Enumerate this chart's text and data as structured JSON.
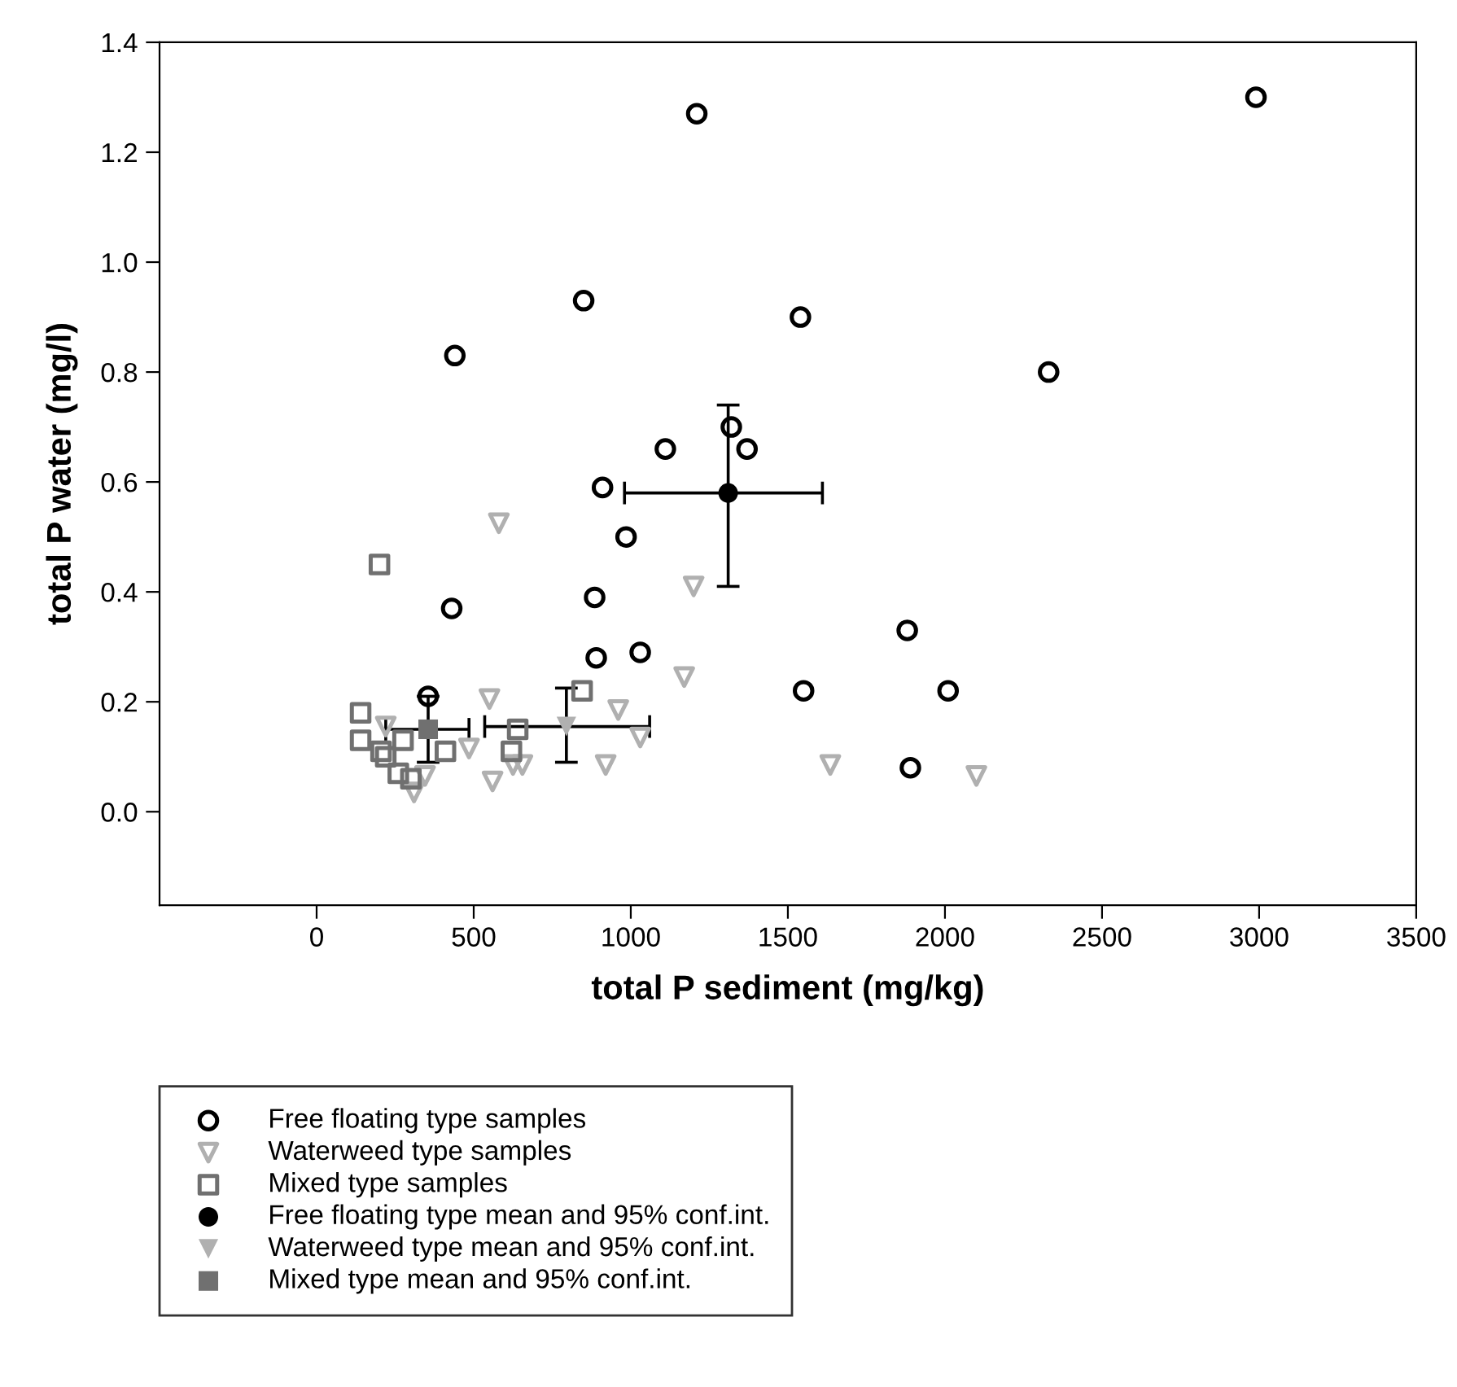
{
  "chart_data": {
    "type": "scatter",
    "xlabel": "total P sediment (mg/kg)",
    "ylabel": "total P water (mg/l)",
    "xlim": [
      -500,
      3500
    ],
    "ylim": [
      -0.17,
      1.4
    ],
    "xticks": [
      0,
      500,
      1000,
      1500,
      2000,
      2500,
      3000,
      3500
    ],
    "yticks": [
      {
        "value": 0,
        "label": "0.0"
      },
      {
        "value": 0.2,
        "label": "0.2"
      },
      {
        "value": 0.4,
        "label": "0.4"
      },
      {
        "value": 0.6,
        "label": "0.6"
      },
      {
        "value": 0.8,
        "label": "0.8"
      },
      {
        "value": 1.0,
        "label": "1.0"
      },
      {
        "value": 1.2,
        "label": "1.2"
      },
      {
        "value": 1.4,
        "label": "1.4"
      }
    ],
    "grid": false,
    "legend": "bottom left",
    "series": [
      {
        "name": "Free floating type samples",
        "color": "#000000",
        "marker": "circle",
        "x": [
          1210,
          2990,
          850,
          440,
          1540,
          2330,
          1320,
          1110,
          1370,
          910,
          985,
          430,
          885,
          890,
          1030,
          1550,
          355,
          1880,
          2010,
          1890
        ],
        "values": [
          1.27,
          1.3,
          0.93,
          0.83,
          0.9,
          0.8,
          0.7,
          0.66,
          0.66,
          0.59,
          0.5,
          0.37,
          0.39,
          0.28,
          0.29,
          0.22,
          0.21,
          0.33,
          0.22,
          0.08
        ]
      },
      {
        "name": "Waterweed type samples",
        "color": "#b0b0b0",
        "marker": "triangle",
        "x": [
          580,
          1200,
          1170,
          550,
          220,
          960,
          1030,
          485,
          345,
          310,
          625,
          655,
          560,
          920,
          1635,
          2100
        ],
        "values": [
          0.525,
          0.41,
          0.245,
          0.205,
          0.155,
          0.185,
          0.135,
          0.115,
          0.065,
          0.035,
          0.085,
          0.085,
          0.055,
          0.085,
          0.085,
          0.065
        ]
      },
      {
        "name": "Mixed type samples",
        "color": "#707070",
        "marker": "square",
        "x": [
          200,
          140,
          140,
          205,
          220,
          275,
          260,
          300,
          410,
          640,
          620,
          845
        ],
        "values": [
          0.45,
          0.18,
          0.13,
          0.11,
          0.1,
          0.13,
          0.07,
          0.06,
          0.11,
          0.15,
          0.11,
          0.22
        ]
      },
      {
        "name": "Free floating type mean and 95% conf.int.",
        "color": "#000000",
        "marker": "circle",
        "x": [
          1310
        ],
        "values": [
          0.58
        ],
        "xerrors": [
          [
            980,
            1610
          ]
        ],
        "errors": [
          [
            0.41,
            0.74
          ]
        ]
      },
      {
        "name": "Waterweed type mean and 95% conf.int.",
        "color": "#b0b0b0",
        "marker": "triangle",
        "x": [
          795
        ],
        "values": [
          0.155
        ],
        "xerrors": [
          [
            535,
            1060
          ]
        ],
        "errors": [
          [
            0.09,
            0.225
          ]
        ]
      },
      {
        "name": "Mixed type mean and 95% conf.int.",
        "color": "#707070",
        "marker": "square",
        "x": [
          355
        ],
        "values": [
          0.15
        ],
        "xerrors": [
          [
            220,
            485
          ]
        ],
        "errors": [
          [
            0.09,
            0.21
          ]
        ]
      }
    ]
  }
}
